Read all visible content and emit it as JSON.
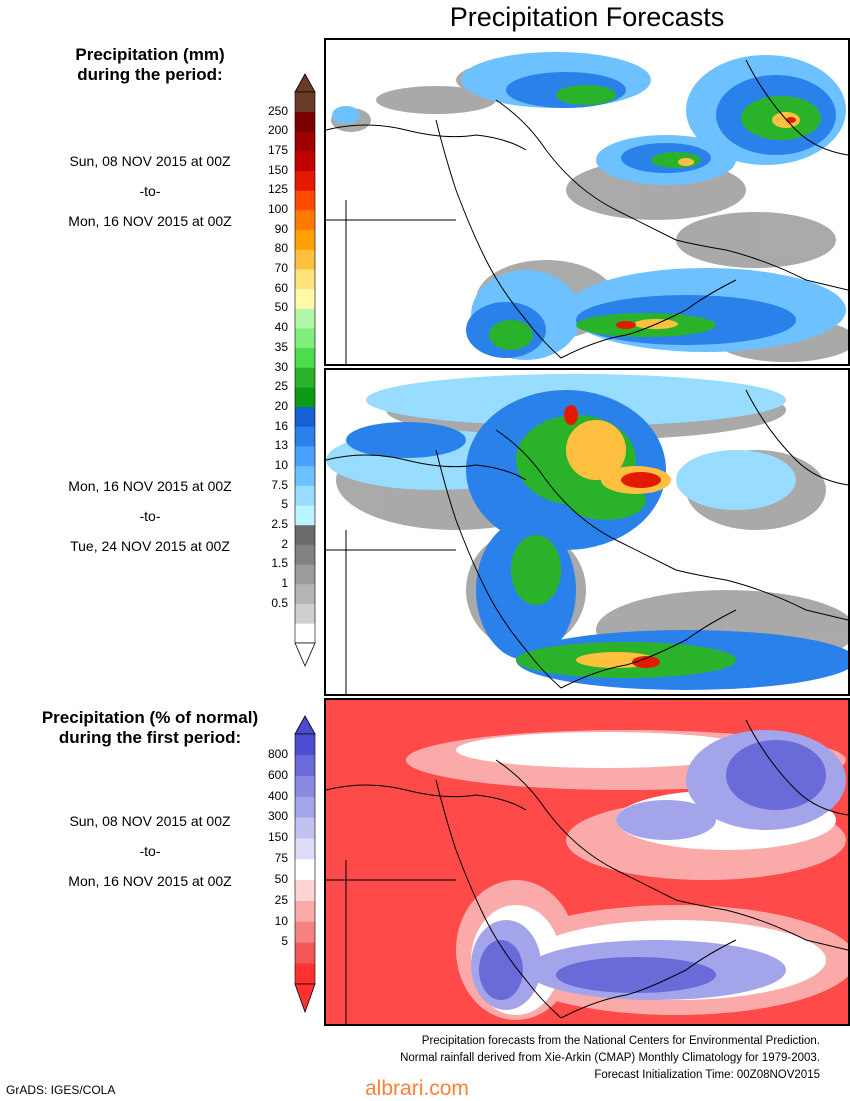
{
  "header": {
    "title": "Precipitation Forecasts"
  },
  "precip_legend": {
    "title_line1": "Precipitation (mm)",
    "title_line2": "during the period:",
    "colors": [
      "#ffffff",
      "#cfcfcf",
      "#b5b5b5",
      "#9b9b9b",
      "#828282",
      "#6b6b6b",
      "#b9f4ff",
      "#98dcff",
      "#6ec1ff",
      "#4aa2ff",
      "#2b81ea",
      "#1662d4",
      "#0d9a16",
      "#2ab32a",
      "#4cdc4c",
      "#7def7d",
      "#b0f7a8",
      "#fffaaa",
      "#ffe47a",
      "#ffc040",
      "#ffa000",
      "#ff7a00",
      "#ff4a00",
      "#e41a00",
      "#c00000",
      "#a00000",
      "#7a0000",
      "#6a3a28"
    ],
    "labels": [
      "250",
      "200",
      "175",
      "150",
      "125",
      "100",
      "90",
      "80",
      "70",
      "60",
      "50",
      "40",
      "35",
      "30",
      "25",
      "20",
      "16",
      "13",
      "10",
      "7.5",
      "5",
      "2.5",
      "2",
      "1.5",
      "1",
      "0.5"
    ]
  },
  "period1": {
    "start": "Sun, 08 NOV 2015 at 00Z",
    "to": "-to-",
    "end": "Mon, 16 NOV 2015 at 00Z"
  },
  "period2": {
    "start": "Mon, 16 NOV 2015 at 00Z",
    "to": "-to-",
    "end": "Tue, 24 NOV 2015 at 00Z"
  },
  "anomaly_legend": {
    "title_line1": "Precipitation (% of normal)",
    "title_line2": "during the first period:",
    "colors": [
      "#ff3030",
      "#f25858",
      "#f78282",
      "#fbaaaa",
      "#fdd4d4",
      "#ffffff",
      "#dcdcf8",
      "#c2c2f2",
      "#a4a4ea",
      "#8a8ae2",
      "#6a6ad8",
      "#4c4cd0"
    ],
    "labels": [
      "800",
      "600",
      "400",
      "300",
      "150",
      "75",
      "50",
      "25",
      "10",
      "5"
    ]
  },
  "period3": {
    "start": "Sun, 08 NOV 2015 at 00Z",
    "to": "-to-",
    "end": "Mon, 16 NOV 2015 at 00Z"
  },
  "credits": {
    "line1": "Precipitation forecasts from the National Centers for Environmental Prediction.",
    "line2": "Normal rainfall derived from Xie-Arkin (CMAP) Monthly Climatology for 1979-2003.",
    "line3": "Forecast Initialization Time: 00Z08NOV2015"
  },
  "footer": {
    "grads": "GrADS: IGES/COLA",
    "watermark": "albrari.com"
  },
  "colors": {
    "anomaly_dry": "#ff4a4a",
    "anomaly_wet": "#4c4cd0"
  }
}
